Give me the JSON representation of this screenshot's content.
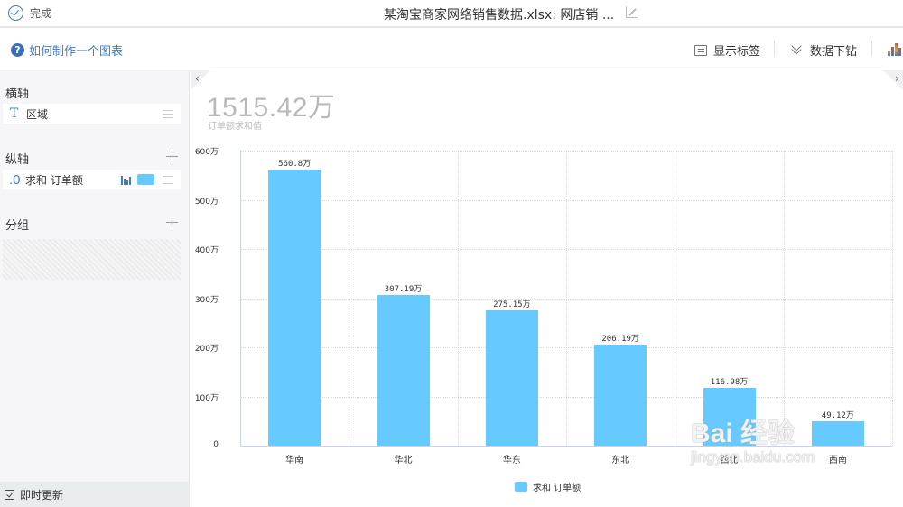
{
  "topbar": {
    "done_label": "完成",
    "title": "某淘宝商家网络销售数据.xlsx: 网店销 ..."
  },
  "toolbar": {
    "help_label": "如何制作一个图表",
    "show_labels": "显示标签",
    "drill_down": "数据下钻"
  },
  "sidebar": {
    "x_axis_title": "横轴",
    "x_field": {
      "type_icon": "T",
      "label": "区域"
    },
    "y_axis_title": "纵轴",
    "y_field": {
      "type_icon": ".0",
      "label": "求和 订单额",
      "color": "#66c9ff"
    },
    "group_title": "分组",
    "auto_update_label": "即时更新",
    "auto_update_checked": true
  },
  "canvas": {
    "nav_left": "‹",
    "nav_right": "›",
    "total_value": "1515.42万",
    "total_caption": "订单额求和值"
  },
  "chart_data": {
    "type": "bar",
    "title": "",
    "xlabel": "",
    "ylabel": "",
    "categories": [
      "华南",
      "华北",
      "华东",
      "东北",
      "西北",
      "西南"
    ],
    "series": [
      {
        "name": "求和 订单额",
        "color": "#66c9ff",
        "values": [
          560.8,
          307.19,
          275.15,
          206.19,
          116.98,
          49.12
        ],
        "labels": [
          "560.8万",
          "307.19万",
          "275.15万",
          "206.19万",
          "116.98万",
          "49.12万"
        ]
      }
    ],
    "unit": "万",
    "yticks": [
      "0",
      "100万",
      "200万",
      "300万",
      "400万",
      "500万",
      "600万"
    ],
    "ylim": [
      0,
      600
    ],
    "grid": true,
    "legend_position": "bottom",
    "legend": [
      "求和 订单额"
    ]
  },
  "watermark": {
    "main": "Bai 经验",
    "sub": "jingyan.baidu.com"
  }
}
